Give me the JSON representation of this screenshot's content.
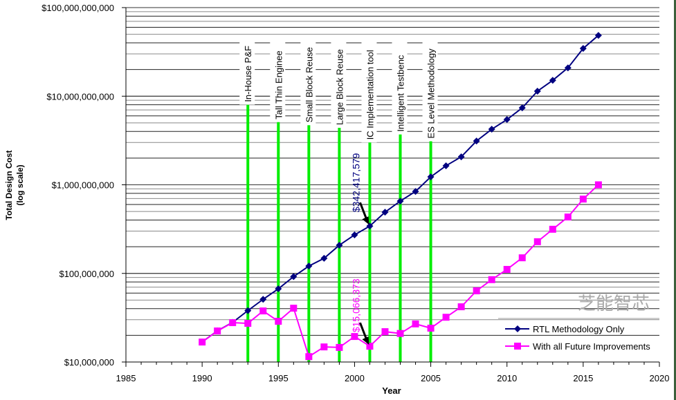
{
  "chart_data": {
    "type": "line",
    "xlabel": "Year",
    "ylabel": "Total Design Cost",
    "ylabel_sub": "(log scale)",
    "y_scale": "log",
    "xlim": [
      1985,
      2020
    ],
    "ylim": [
      10000000,
      100000000000
    ],
    "x_ticks": [
      "1985",
      "1990",
      "1995",
      "2000",
      "2005",
      "2010",
      "2015",
      "2020"
    ],
    "y_ticks": [
      "$10,000,000",
      "$100,000,000",
      "$1,000,000,000",
      "$10,000,000,000",
      "$100,000,000,000"
    ],
    "grid": "horizontal minor log gridlines",
    "legend_position": "bottom-right",
    "series": [
      {
        "name": "RTL Methodology Only",
        "color": "#000080",
        "marker": "diamond",
        "x": [
          1990,
          1991,
          1992,
          1993,
          1994,
          1995,
          1996,
          1997,
          1998,
          1999,
          2000,
          2001,
          2002,
          2003,
          2004,
          2005,
          2006,
          2007,
          2008,
          2009,
          2010,
          2011,
          2012,
          2013,
          2014,
          2015,
          2016
        ],
        "y": [
          16800000,
          22500000,
          28000000,
          38000000,
          51000000,
          67000000,
          92000000,
          121000000,
          148000000,
          208000000,
          272000000,
          342417579,
          491000000,
          655000000,
          842000000,
          1230000000,
          1640000000,
          2070000000,
          3120000000,
          4240000000,
          5450000000,
          7380000000,
          11400000000,
          15100000000,
          20900000000,
          34600000000,
          48600000000
        ]
      },
      {
        "name": "With all Future Improvements",
        "color": "#ff00ff",
        "marker": "square",
        "x": [
          1990,
          1991,
          1992,
          1993,
          1994,
          1995,
          1996,
          1997,
          1998,
          1999,
          2000,
          2001,
          2002,
          2003,
          2004,
          2005,
          2006,
          2007,
          2008,
          2009,
          2010,
          2011,
          2012,
          2013,
          2014,
          2015,
          2016
        ],
        "y": [
          16800000,
          22400000,
          27800000,
          27300000,
          37700000,
          28800000,
          40500000,
          11500000,
          14800000,
          14600000,
          19400000,
          15066373,
          22000000,
          21000000,
          26900000,
          24100000,
          32000000,
          42000000,
          63600000,
          85000000,
          111000000,
          150000000,
          228000000,
          315000000,
          433000000,
          690000000,
          1000000000
        ]
      }
    ],
    "milestones": [
      {
        "year": 1993,
        "label": "In-House P&F",
        "top": 8000000000
      },
      {
        "year": 1995,
        "label": "Tall Thin Enginee",
        "top": 5100000000
      },
      {
        "year": 1997,
        "label": "Small Block Reuse",
        "top": 4700000000
      },
      {
        "year": 1999,
        "label": "Large Block Reuse",
        "top": 4400000000
      },
      {
        "year": 2001,
        "label": "IC Implementation tool",
        "top": 3000000000
      },
      {
        "year": 2003,
        "label": "Intelligent Testbenc",
        "top": 3700000000
      },
      {
        "year": 2005,
        "label": "ES Level Methodology",
        "top": 3100000000
      }
    ],
    "milestone_color": "#00ee00",
    "annotations": [
      {
        "text": "$342,417,579",
        "x": 2001,
        "y": 342417579,
        "color": "#000080"
      },
      {
        "text": "$15,066,373",
        "x": 2001,
        "y": 15066373,
        "color": "#ff00ff"
      }
    ]
  },
  "watermark": "芝能智芯"
}
